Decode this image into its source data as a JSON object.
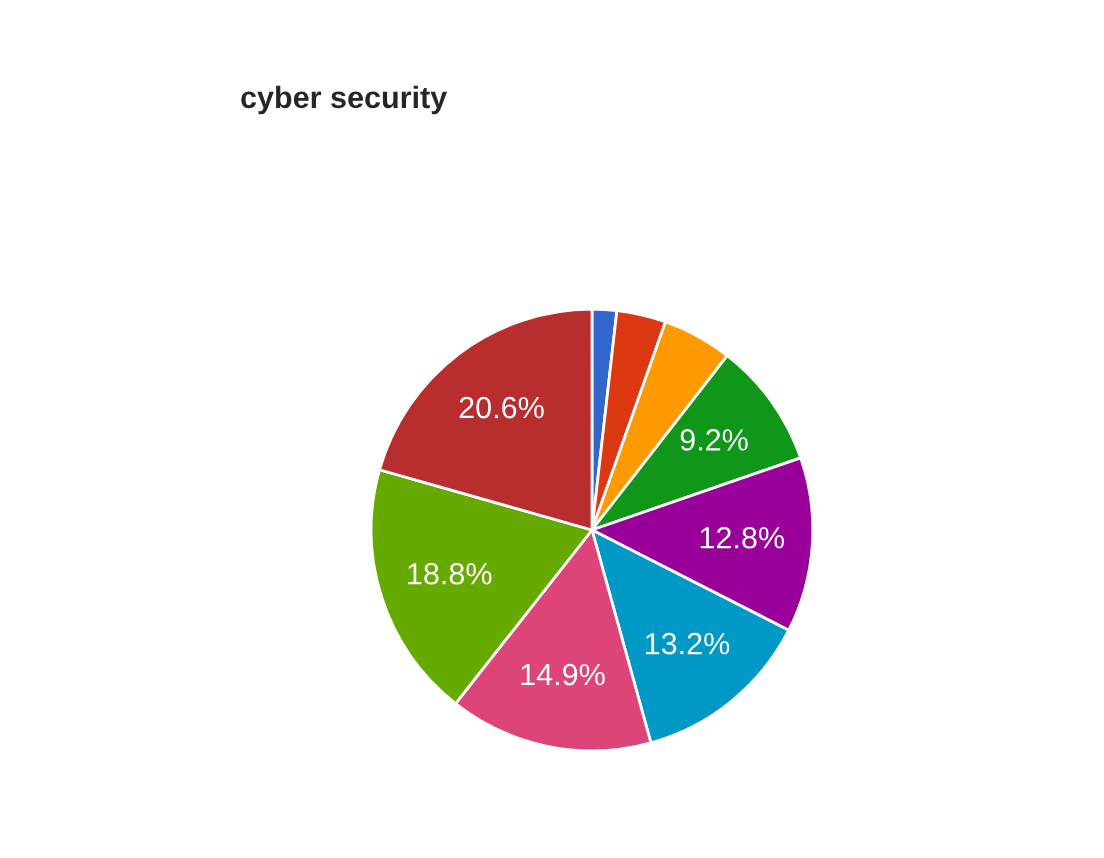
{
  "chart_data": {
    "type": "pie",
    "title": "cyber security",
    "categories": [
      null,
      null,
      null,
      null,
      null,
      null,
      null,
      null,
      null
    ],
    "values": [
      1.8,
      3.6,
      5.1,
      9.2,
      12.8,
      13.2,
      14.9,
      18.8,
      20.6
    ],
    "value_labels": [
      null,
      null,
      null,
      "9.2%",
      "12.8%",
      "13.2%",
      "14.9%",
      "18.8%",
      "20.6%"
    ],
    "colors": [
      "#3366cc",
      "#dc3912",
      "#ff9900",
      "#109618",
      "#990099",
      "#0099c6",
      "#dd4477",
      "#66aa00",
      "#b82e2e"
    ],
    "legend": false
  }
}
